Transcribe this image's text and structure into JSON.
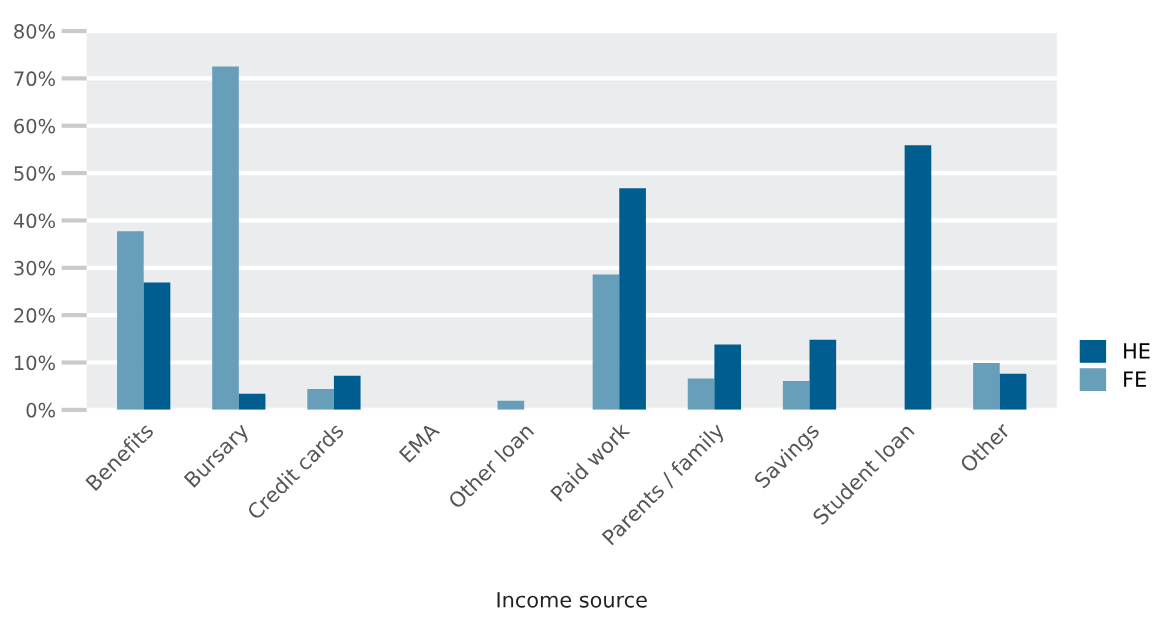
{
  "chart_data": {
    "type": "bar",
    "xlabel": "Income source",
    "categories": [
      "Benefits",
      "Bursary",
      "Credit cards",
      "EMA",
      "Other loan",
      "Paid work",
      "Parents / family",
      "Savings",
      "Student loan",
      "Other"
    ],
    "series": [
      {
        "name": "FE",
        "color": "#679eba",
        "values": [
          37.7,
          72.5,
          4.4,
          0,
          1.9,
          28.6,
          6.6,
          6.1,
          0,
          9.9
        ]
      },
      {
        "name": "HE",
        "color": "#005d8f",
        "values": [
          26.9,
          3.4,
          7.2,
          0,
          0,
          46.8,
          13.8,
          14.8,
          55.9,
          7.6
        ]
      }
    ],
    "ylim": [
      0,
      80
    ],
    "yticks": [
      {
        "value": 0,
        "label": "0%"
      },
      {
        "value": 10,
        "label": "10%"
      },
      {
        "value": 20,
        "label": "20%"
      },
      {
        "value": 30,
        "label": "30%"
      },
      {
        "value": 40,
        "label": "40%"
      },
      {
        "value": 50,
        "label": "50%"
      },
      {
        "value": 60,
        "label": "60%"
      },
      {
        "value": 70,
        "label": "70%"
      },
      {
        "value": 80,
        "label": "80%"
      }
    ],
    "grid": "y",
    "legend": "right"
  }
}
